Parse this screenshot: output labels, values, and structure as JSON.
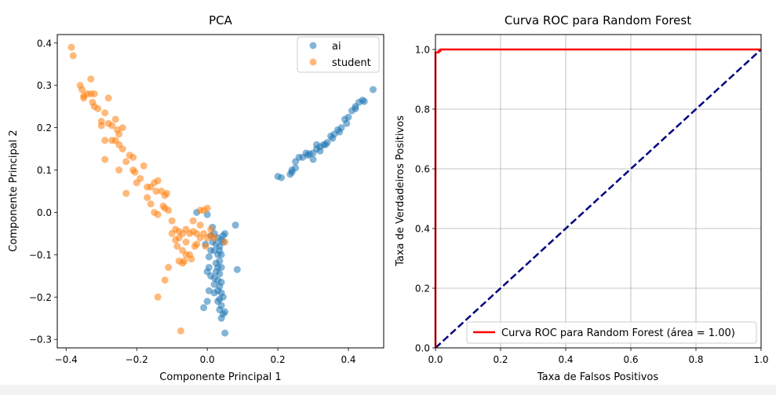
{
  "chart_data": [
    {
      "type": "scatter",
      "title": "PCA",
      "xlabel": "Componente Principal 1",
      "ylabel": "Componente Principal 2",
      "xlim": [
        -0.425,
        0.5
      ],
      "ylim": [
        -0.32,
        0.42
      ],
      "xticks": [
        -0.4,
        -0.2,
        0.0,
        0.2,
        0.4
      ],
      "xticklabels": [
        "−0.4",
        "−0.2",
        "0.0",
        "0.2",
        "0.4"
      ],
      "yticks": [
        -0.3,
        -0.2,
        -0.1,
        0.0,
        0.1,
        0.2,
        0.3,
        0.4
      ],
      "yticklabels": [
        "−0.3",
        "−0.2",
        "−0.1",
        "0.0",
        "0.1",
        "0.2",
        "0.3",
        "0.4"
      ],
      "grid": false,
      "legend": "upper right",
      "series": [
        {
          "name": "ai",
          "color": "#1f77b4",
          "points": [
            [
              0.47,
              0.29
            ],
            [
              0.44,
              0.265
            ],
            [
              0.43,
              0.26
            ],
            [
              0.42,
              0.25
            ],
            [
              0.41,
              0.24
            ],
            [
              0.4,
              0.225
            ],
            [
              0.39,
              0.22
            ],
            [
              0.395,
              0.21
            ],
            [
              0.38,
              0.2
            ],
            [
              0.37,
              0.195
            ],
            [
              0.36,
              0.185
            ],
            [
              0.355,
              0.175
            ],
            [
              0.35,
              0.18
            ],
            [
              0.34,
              0.165
            ],
            [
              0.33,
              0.16
            ],
            [
              0.32,
              0.155
            ],
            [
              0.31,
              0.15
            ],
            [
              0.3,
              0.14
            ],
            [
              0.29,
              0.138
            ],
            [
              0.285,
              0.135
            ],
            [
              0.28,
              0.14
            ],
            [
              0.26,
              0.13
            ],
            [
              0.25,
              0.12
            ],
            [
              0.25,
              0.105
            ],
            [
              0.24,
              0.1
            ],
            [
              0.235,
              0.09
            ],
            [
              0.2,
              0.085
            ],
            [
              0.21,
              0.082
            ],
            [
              0.3,
              0.125
            ],
            [
              0.32,
              0.145
            ],
            [
              0.335,
              0.16
            ],
            [
              0.375,
              0.19
            ],
            [
              0.42,
              0.245
            ],
            [
              0.445,
              0.262
            ],
            [
              0.31,
              0.16
            ],
            [
              0.27,
              0.13
            ],
            [
              0.24,
              0.095
            ],
            [
              0.08,
              -0.03
            ],
            [
              0.085,
              -0.135
            ],
            [
              -0.03,
              0.0
            ],
            [
              0.0,
              -0.005
            ],
            [
              0.05,
              -0.05
            ],
            [
              0.045,
              -0.055
            ],
            [
              0.04,
              -0.065
            ],
            [
              0.03,
              -0.06
            ],
            [
              0.02,
              -0.05
            ],
            [
              0.01,
              -0.055
            ],
            [
              0.015,
              -0.07
            ],
            [
              0.025,
              -0.075
            ],
            [
              0.035,
              -0.08
            ],
            [
              0.02,
              -0.09
            ],
            [
              0.03,
              -0.1
            ],
            [
              0.04,
              -0.1
            ],
            [
              0.035,
              -0.115
            ],
            [
              0.025,
              -0.12
            ],
            [
              0.03,
              -0.13
            ],
            [
              0.04,
              -0.13
            ],
            [
              0.035,
              -0.145
            ],
            [
              0.005,
              -0.13
            ],
            [
              0.0,
              -0.14
            ],
            [
              0.01,
              -0.15
            ],
            [
              0.02,
              -0.155
            ],
            [
              0.03,
              -0.16
            ],
            [
              0.04,
              -0.165
            ],
            [
              0.035,
              -0.175
            ],
            [
              0.03,
              -0.185
            ],
            [
              0.02,
              -0.19
            ],
            [
              0.04,
              -0.19
            ],
            [
              0.035,
              -0.205
            ],
            [
              0.03,
              -0.21
            ],
            [
              0.04,
              -0.22
            ],
            [
              0.035,
              -0.23
            ],
            [
              0.05,
              -0.235
            ],
            [
              0.045,
              -0.24
            ],
            [
              0.04,
              -0.25
            ],
            [
              0.05,
              -0.285
            ],
            [
              0.0,
              -0.21
            ],
            [
              -0.01,
              -0.225
            ],
            [
              0.005,
              -0.185
            ],
            [
              0.01,
              -0.09
            ],
            [
              -0.005,
              -0.075
            ],
            [
              0.015,
              -0.035
            ],
            [
              0.045,
              -0.07
            ],
            [
              0.035,
              -0.09
            ],
            [
              0.005,
              -0.105
            ],
            [
              0.025,
              -0.14
            ],
            [
              0.02,
              -0.17
            ],
            [
              0.045,
              -0.2
            ]
          ]
        },
        {
          "name": "student",
          "color": "#ff7f0e",
          "points": [
            [
              -0.385,
              0.39
            ],
            [
              -0.38,
              0.37
            ],
            [
              -0.36,
              0.3
            ],
            [
              -0.355,
              0.29
            ],
            [
              -0.34,
              0.28
            ],
            [
              -0.35,
              0.275
            ],
            [
              -0.33,
              0.315
            ],
            [
              -0.325,
              0.26
            ],
            [
              -0.32,
              0.25
            ],
            [
              -0.31,
              0.245
            ],
            [
              -0.32,
              0.28
            ],
            [
              -0.3,
              0.215
            ],
            [
              -0.3,
              0.205
            ],
            [
              -0.29,
              0.235
            ],
            [
              -0.28,
              0.21
            ],
            [
              -0.27,
              0.205
            ],
            [
              -0.26,
              0.22
            ],
            [
              -0.255,
              0.195
            ],
            [
              -0.25,
              0.185
            ],
            [
              -0.26,
              0.17
            ],
            [
              -0.25,
              0.16
            ],
            [
              -0.24,
              0.15
            ],
            [
              -0.28,
              0.27
            ],
            [
              -0.29,
              0.17
            ],
            [
              -0.29,
              0.125
            ],
            [
              -0.25,
              0.1
            ],
            [
              -0.23,
              0.12
            ],
            [
              -0.22,
              0.135
            ],
            [
              -0.21,
              0.1
            ],
            [
              -0.205,
              0.095
            ],
            [
              -0.19,
              0.08
            ],
            [
              -0.2,
              0.07
            ],
            [
              -0.18,
              0.11
            ],
            [
              -0.17,
              0.06
            ],
            [
              -0.16,
              0.06
            ],
            [
              -0.15,
              0.07
            ],
            [
              -0.145,
              0.05
            ],
            [
              -0.14,
              0.075
            ],
            [
              -0.13,
              0.05
            ],
            [
              -0.12,
              0.04
            ],
            [
              -0.115,
              0.045
            ],
            [
              -0.125,
              0.015
            ],
            [
              -0.12,
              0.01
            ],
            [
              -0.14,
              -0.005
            ],
            [
              -0.15,
              0.0
            ],
            [
              -0.16,
              0.02
            ],
            [
              -0.17,
              0.035
            ],
            [
              -0.11,
              0.005
            ],
            [
              -0.1,
              -0.02
            ],
            [
              -0.09,
              -0.04
            ],
            [
              -0.08,
              -0.045
            ],
            [
              -0.07,
              -0.05
            ],
            [
              -0.06,
              -0.04
            ],
            [
              -0.05,
              -0.05
            ],
            [
              -0.04,
              -0.045
            ],
            [
              -0.03,
              -0.05
            ],
            [
              -0.02,
              -0.06
            ],
            [
              -0.01,
              -0.05
            ],
            [
              0.0,
              -0.06
            ],
            [
              0.01,
              -0.055
            ],
            [
              0.02,
              -0.06
            ],
            [
              0.05,
              -0.07
            ],
            [
              -0.08,
              -0.06
            ],
            [
              -0.085,
              -0.08
            ],
            [
              -0.07,
              -0.09
            ],
            [
              -0.06,
              -0.1
            ],
            [
              -0.05,
              -0.1
            ],
            [
              -0.045,
              -0.11
            ],
            [
              -0.065,
              -0.115
            ],
            [
              -0.08,
              -0.115
            ],
            [
              -0.07,
              -0.12
            ],
            [
              -0.12,
              -0.16
            ],
            [
              -0.11,
              -0.13
            ],
            [
              -0.14,
              -0.2
            ],
            [
              -0.075,
              -0.28
            ],
            [
              -0.23,
              0.045
            ],
            [
              -0.01,
              0.005
            ],
            [
              0.0,
              0.01
            ],
            [
              -0.02,
              0.005
            ],
            [
              -0.04,
              -0.02
            ],
            [
              -0.035,
              -0.08
            ],
            [
              -0.005,
              -0.08
            ],
            [
              -0.1,
              -0.05
            ],
            [
              -0.09,
              -0.065
            ],
            [
              -0.06,
              -0.07
            ],
            [
              -0.03,
              -0.075
            ],
            [
              -0.02,
              -0.03
            ],
            [
              0.01,
              -0.04
            ],
            [
              -0.21,
              0.13
            ],
            [
              -0.24,
              0.2
            ],
            [
              -0.27,
              0.17
            ],
            [
              -0.33,
              0.28
            ],
            [
              -0.35,
              0.27
            ]
          ]
        }
      ]
    },
    {
      "type": "line",
      "title": "Curva ROC para Random Forest",
      "xlabel": "Taxa de Falsos Positivos",
      "ylabel": "Taxa de Verdadeiros Positivos",
      "xlim": [
        0.0,
        1.0
      ],
      "ylim": [
        0.0,
        1.05
      ],
      "xticks": [
        0.0,
        0.2,
        0.4,
        0.6,
        0.8,
        1.0
      ],
      "xticklabels": [
        "0.0",
        "0.2",
        "0.4",
        "0.6",
        "0.8",
        "1.0"
      ],
      "yticks": [
        0.0,
        0.2,
        0.4,
        0.6,
        0.8,
        1.0
      ],
      "yticklabels": [
        "0.0",
        "0.2",
        "0.4",
        "0.6",
        "0.8",
        "1.0"
      ],
      "grid": true,
      "legend": "lower right",
      "series": [
        {
          "name": "Curva ROC para Random Forest (área = 1.00)",
          "color": "#ff0000",
          "x": [
            0.0,
            0.0,
            0.0,
            0.01,
            0.01,
            0.015,
            0.015,
            1.0
          ],
          "y": [
            0.0,
            0.98,
            0.99,
            0.99,
            0.995,
            0.995,
            1.0,
            1.0
          ]
        },
        {
          "color": "#000080",
          "dashed": true,
          "x": [
            0.0,
            1.0
          ],
          "y": [
            0.0,
            1.0
          ]
        }
      ]
    }
  ]
}
